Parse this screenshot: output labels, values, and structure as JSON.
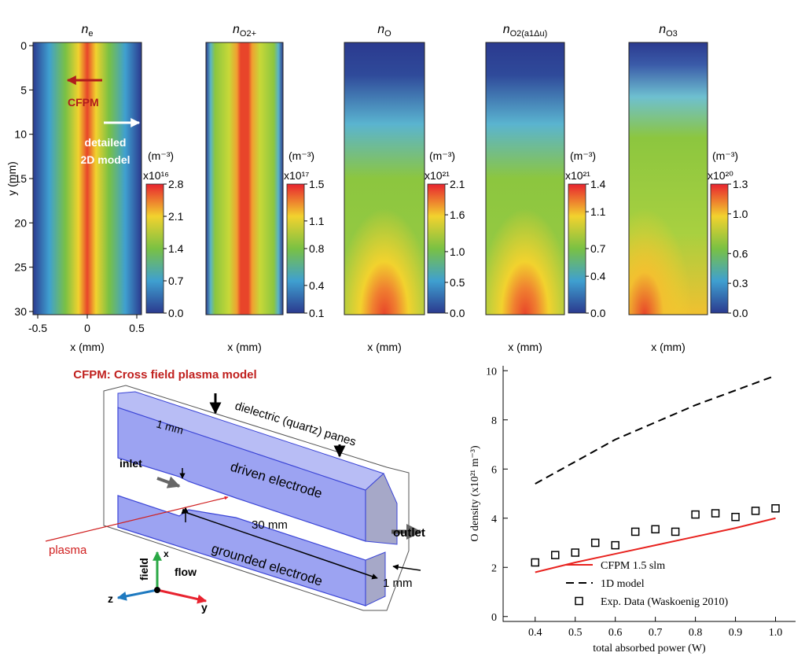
{
  "chart_data": [
    {
      "type": "heatmap",
      "title": "n",
      "subscript": "e",
      "xlabel": "x (mm)",
      "ylabel": "y (mm)",
      "xlim": [
        -0.5,
        0.5
      ],
      "xticks": [
        -0.5,
        0,
        0.5
      ],
      "ylim": [
        0,
        30
      ],
      "yticks": [
        0,
        5,
        10,
        15,
        20,
        25,
        30
      ],
      "colorbar": {
        "unit": "(m⁻³)",
        "multiplier": "x10¹⁶",
        "lim": [
          0,
          2.8
        ],
        "ticks": [
          {
            "value": 0,
            "label": "0.0"
          },
          0.7,
          1.4,
          2.1,
          2.8
        ]
      }
    },
    {
      "type": "heatmap",
      "title": "n",
      "subscript": "O2+",
      "xlabel": "x (mm)",
      "colorbar": {
        "unit": "(m⁻³)",
        "multiplier": "x10¹⁷",
        "lim": [
          0.1,
          1.5
        ],
        "ticks": [
          0.1,
          0.4,
          0.8,
          1.1,
          1.5
        ]
      }
    },
    {
      "type": "heatmap",
      "title": "n",
      "subscript": "O",
      "xlabel": "x (mm)",
      "colorbar": {
        "unit": "(m⁻³)",
        "multiplier": "x10²¹",
        "lim": [
          0,
          2.1
        ],
        "ticks": [
          {
            "value": 0,
            "label": "0.0"
          },
          0.5,
          {
            "value": 1,
            "label": "1.0"
          },
          1.6,
          2.1
        ]
      }
    },
    {
      "type": "heatmap",
      "title": "n",
      "subscript": "O2(a1Δu)",
      "xlabel": "x (mm)",
      "colorbar": {
        "unit": "(m⁻³)",
        "multiplier": "x10²¹",
        "lim": [
          0,
          1.4
        ],
        "ticks": [
          {
            "value": 0,
            "label": "0.0"
          },
          0.4,
          0.7,
          1.1,
          1.4
        ]
      }
    },
    {
      "type": "heatmap",
      "title": "n",
      "subscript": "O3",
      "xlabel": "x (mm)",
      "colorbar": {
        "unit": "(m⁻³)",
        "multiplier": "x10²⁰",
        "lim": [
          0,
          1.3
        ],
        "ticks": [
          {
            "value": 0,
            "label": "0.0"
          },
          0.3,
          0.6,
          {
            "value": 1,
            "label": "1.0"
          },
          1.3
        ]
      }
    },
    {
      "type": "line",
      "xlabel": "total absorbed power (W)",
      "ylabel": "O density (x10²¹ m⁻³)",
      "xlim": [
        0.32,
        1.05
      ],
      "xticks": [
        0.4,
        0.5,
        0.6,
        0.7,
        0.8,
        0.9,
        {
          "value": 1,
          "label": "1.0"
        }
      ],
      "ylim": [
        -0.2,
        10.2
      ],
      "yticks": [
        0,
        2,
        4,
        6,
        8,
        10
      ],
      "legend": "lower right",
      "series": [
        {
          "name": "CFPM 1.5 slm",
          "color": "#e8231f",
          "style": "solid",
          "x": [
            0.4,
            0.5,
            0.6,
            0.7,
            0.8,
            0.9,
            1.0
          ],
          "values": [
            1.8,
            2.2,
            2.55,
            2.9,
            3.25,
            3.6,
            4.0
          ]
        },
        {
          "name": "1D model",
          "color": "#000000",
          "style": "dashed",
          "x": [
            0.4,
            0.5,
            0.6,
            0.7,
            0.8,
            0.9,
            1.0
          ],
          "values": [
            5.4,
            6.3,
            7.2,
            7.9,
            8.6,
            9.2,
            9.8
          ]
        },
        {
          "name": "Exp. Data (Waskoenig 2010)",
          "color": "#000000",
          "style": "marker",
          "x": [
            0.4,
            0.45,
            0.5,
            0.55,
            0.6,
            0.65,
            0.7,
            0.75,
            0.8,
            0.85,
            0.9,
            0.95,
            1.0
          ],
          "values": [
            2.2,
            2.5,
            2.6,
            3.0,
            2.9,
            3.45,
            3.55,
            3.45,
            4.15,
            4.2,
            4.05,
            4.3,
            4.4
          ]
        }
      ]
    }
  ],
  "annotations": {
    "cfpm": "CFPM",
    "detailed": [
      "detailed",
      "2D model"
    ],
    "caption": "CFPM: Cross field plasma model"
  },
  "diagram": {
    "panes": "dielectric (quartz) panes",
    "gap_top": "1 mm",
    "inlet": "inlet",
    "driven": "driven electrode",
    "length": "30 mm",
    "outlet": "outlet",
    "plasma": "plasma",
    "grounded": "grounded electrode",
    "gap_bottom": "1 mm",
    "field": "field",
    "flow": "flow",
    "axis_x": "x",
    "axis_y": "y",
    "axis_z": "z"
  }
}
